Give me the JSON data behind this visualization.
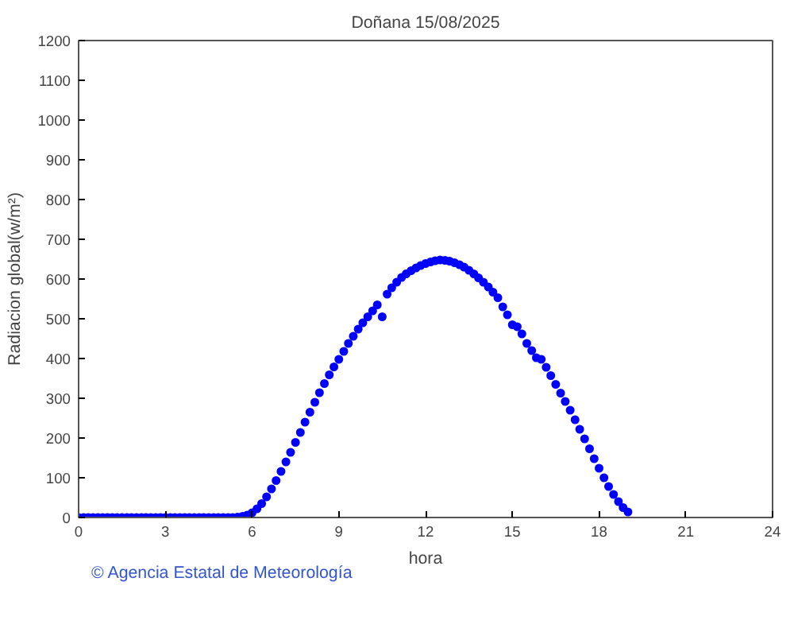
{
  "chart_data": {
    "type": "scatter",
    "title": "Doñana 15/08/2025",
    "xlabel": "hora",
    "ylabel": "Radiacion global(w/m²)",
    "annotations": [
      "© Agencia Estatal de Meteorología"
    ],
    "x": [
      0,
      0.17,
      0.33,
      0.5,
      0.67,
      0.83,
      1,
      1.17,
      1.33,
      1.5,
      1.67,
      1.83,
      2,
      2.17,
      2.33,
      2.5,
      2.67,
      2.83,
      3,
      3.17,
      3.33,
      3.5,
      3.67,
      3.83,
      4,
      4.17,
      4.33,
      4.5,
      4.67,
      4.83,
      5,
      5.17,
      5.33,
      5.5,
      5.67,
      5.83,
      6,
      6.17,
      6.33,
      6.5,
      6.67,
      6.83,
      7,
      7.17,
      7.33,
      7.5,
      7.67,
      7.83,
      8,
      8.17,
      8.33,
      8.5,
      8.67,
      8.83,
      9,
      9.17,
      9.33,
      9.5,
      9.67,
      9.83,
      10,
      10.17,
      10.33,
      10.5,
      10.67,
      10.83,
      11,
      11.17,
      11.33,
      11.5,
      11.67,
      11.83,
      12,
      12.17,
      12.33,
      12.5,
      12.67,
      12.83,
      13,
      13.17,
      13.33,
      13.5,
      13.67,
      13.83,
      14,
      14.17,
      14.33,
      14.5,
      14.67,
      14.83,
      15,
      15.17,
      15.33,
      15.5,
      15.67,
      15.83,
      16,
      16.17,
      16.33,
      16.5,
      16.67,
      16.83,
      17,
      17.17,
      17.33,
      17.5,
      17.67,
      17.83,
      18,
      18.17,
      18.33,
      18.5,
      18.67,
      18.83,
      19
    ],
    "series": [
      {
        "color": "#0000ff",
        "values": [
          0,
          0,
          0,
          0,
          0,
          0,
          0,
          0,
          0,
          0,
          0,
          0,
          0,
          0,
          0,
          0,
          0,
          0,
          0,
          0,
          0,
          0,
          0,
          0,
          0,
          0,
          0,
          0,
          0,
          0,
          0,
          0,
          0,
          1,
          3,
          6,
          12,
          22,
          35,
          52,
          72,
          93,
          116,
          140,
          164,
          189,
          214,
          240,
          265,
          290,
          314,
          337,
          359,
          379,
          398,
          418,
          438,
          456,
          474,
          490,
          505,
          520,
          535,
          505,
          562,
          578,
          592,
          604,
          613,
          621,
          628,
          634,
          639,
          643,
          646,
          648,
          647,
          645,
          641,
          636,
          630,
          622,
          613,
          603,
          592,
          580,
          567,
          553,
          530,
          510,
          485,
          480,
          462,
          438,
          420,
          402,
          398,
          378,
          357,
          335,
          313,
          292,
          270,
          246,
          222,
          198,
          173,
          148,
          124,
          100,
          78,
          58,
          40,
          25,
          14
        ]
      }
    ],
    "xlim": [
      0,
      24
    ],
    "xticks": [
      0,
      3,
      6,
      9,
      12,
      15,
      18,
      21,
      24
    ],
    "ylim": [
      0,
      1200
    ],
    "yticks": [
      0,
      100,
      200,
      300,
      400,
      500,
      600,
      700,
      800,
      900,
      1000,
      1100,
      1200
    ],
    "marker": "circle",
    "grid": false
  }
}
